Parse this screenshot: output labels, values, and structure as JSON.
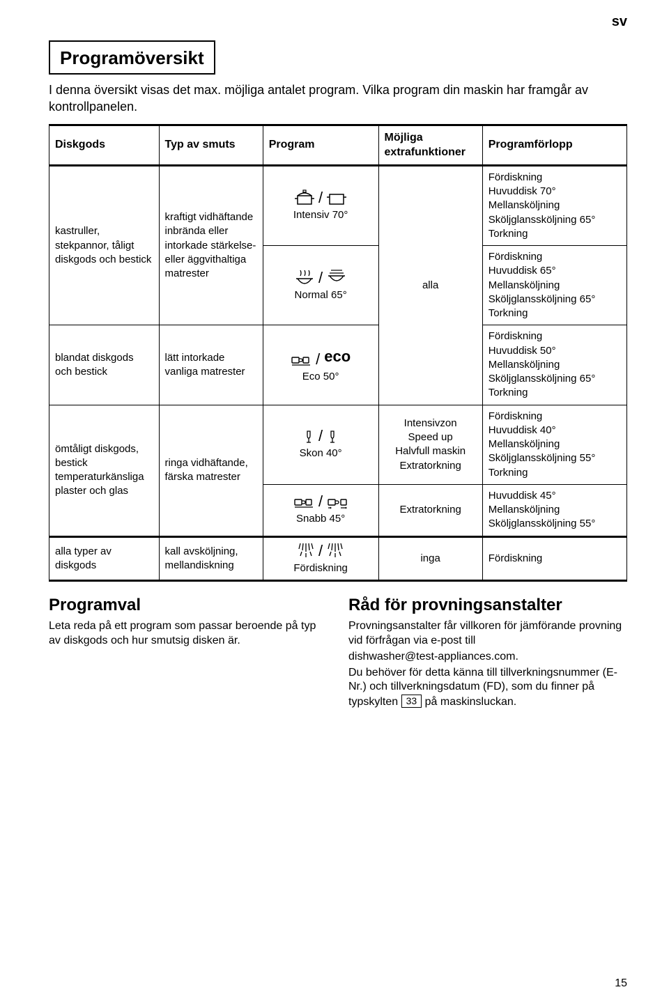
{
  "lang_badge": "sv",
  "title": "Programöversikt",
  "intro": "I denna översikt visas det max. möjliga antalet program. Vilka program din maskin har framgår av kontrollpanelen.",
  "headers": {
    "c1": "Diskgods",
    "c2": "Typ av smuts",
    "c3": "Program",
    "c4": "Möjliga extrafunktioner",
    "c5": "Programförlopp"
  },
  "rows": {
    "r1_diskgods": "kastruller, stekpannor, tåligt diskgods och bestick",
    "r1_typ": "kraftigt vidhäftande inbrända eller intorkade stärkelse- eller äggvithaltiga matrester",
    "r1_prog_label": "Intensiv 70°",
    "r1_extra": "alla",
    "r1_forlopp": "Fördiskning\nHuvuddisk 70°\nMellansköljning\nSköljglanssköljning 65°\nTorkning",
    "r2_prog_label": "Normal 65°",
    "r2_forlopp": "Fördiskning\nHuvuddisk 65°\nMellansköljning\nSköljglanssköljning 65°\nTorkning",
    "r3_diskgods": "blandat diskgods och bestick",
    "r3_typ": "lätt intorkade vanliga matrester",
    "r3_prog_label": "Eco 50°",
    "r3_eco": "eco",
    "r3_forlopp": "Fördiskning\nHuvuddisk 50°\nMellansköljning\nSköljglanssköljning 65°\nTorkning",
    "r4_diskgods": "ömtåligt diskgods, bestick temperaturkänsliga plaster och glas",
    "r4_typ": "ringa vidhäftande, färska matrester",
    "r4_prog_label": "Skon 40°",
    "r4_extra": "Intensivzon\nSpeed up\nHalvfull maskin\nExtratorkning",
    "r4_forlopp": "Fördiskning\nHuvuddisk 40°\nMellansköljning\nSköljglanssköljning 55°\nTorkning",
    "r5_prog_label": "Snabb 45°",
    "r5_extra": "Extratorkning",
    "r5_forlopp": "Huvuddisk 45°\nMellansköljning\nSköljglanssköljning 55°",
    "r6_diskgods": "alla typer av diskgods",
    "r6_typ": "kall avsköljning, mellandiskning",
    "r6_prog_label": "Fördiskning",
    "r6_extra": "inga",
    "r6_forlopp": "Fördiskning"
  },
  "bottom": {
    "left_h": "Programval",
    "left_p": "Leta reda på ett program som passar beroende på typ av diskgods och hur smutsig disken är.",
    "right_h": "Råd för provningsanstalter",
    "right_p1": "Provningsanstalter får villkoren för jämförande provning vid förfrågan via e-post till",
    "right_email": "dishwasher@test-appliances.com.",
    "right_p2": "Du behöver för detta känna till tillverkningsnummer (E-Nr.) och tillverkningsdatum (FD), som du finner på typskylten",
    "right_box": "33",
    "right_p3": "på maskinsluckan."
  },
  "page_number": "15"
}
